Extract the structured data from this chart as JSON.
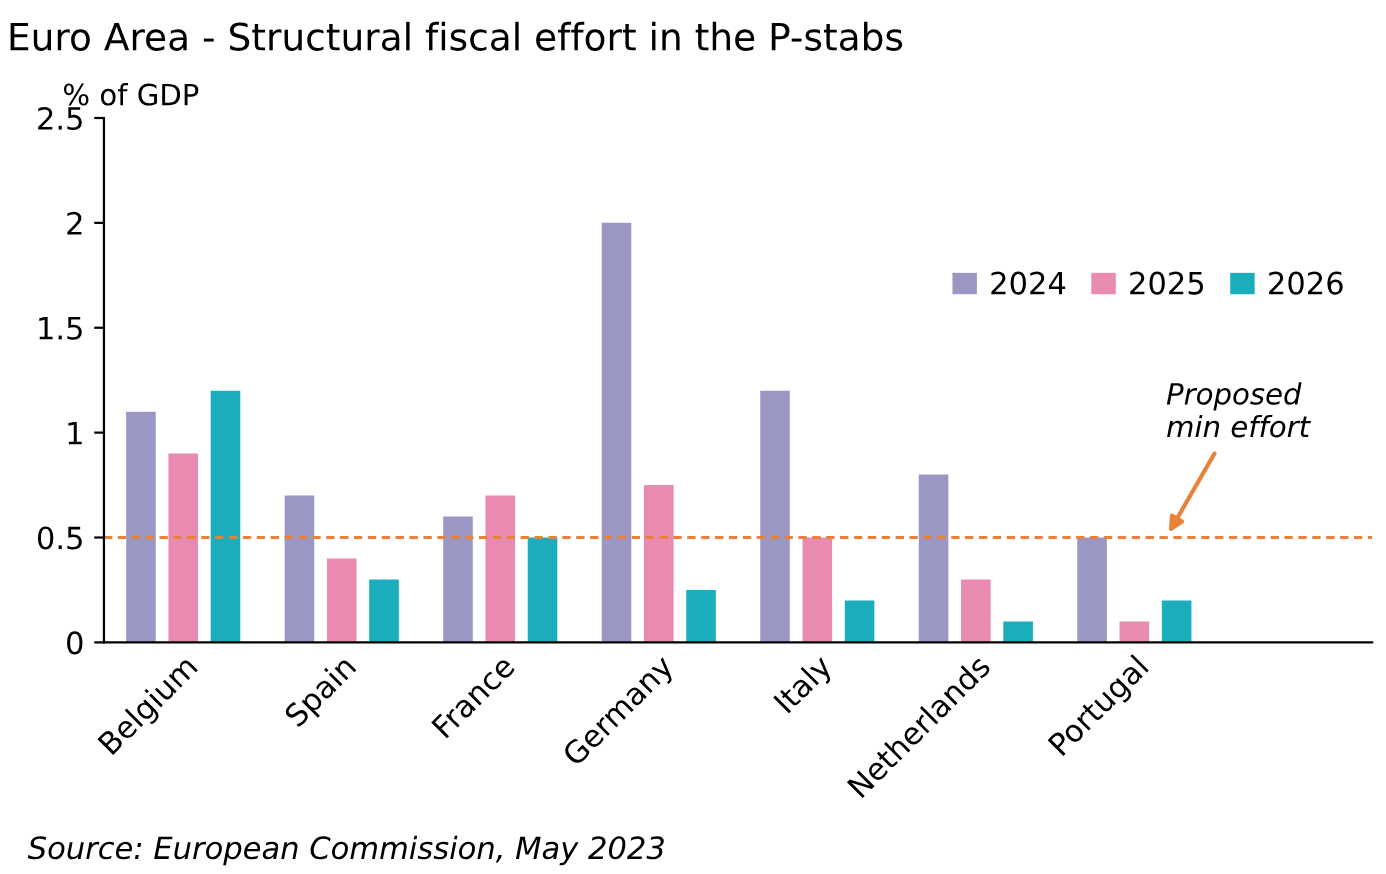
{
  "chart_data": {
    "type": "bar",
    "title": "Euro Area - Structural fiscal effort in the P-stabs",
    "ylabel": "% of GDP",
    "categories": [
      "Belgium",
      "Spain",
      "France",
      "Germany",
      "Italy",
      "Netherlands",
      "Portugal",
      null
    ],
    "series": [
      {
        "name": "2024",
        "color": "#9b97c4",
        "values": [
          1.1,
          0.7,
          0.6,
          2.0,
          1.2,
          0.8,
          0.5,
          null
        ]
      },
      {
        "name": "2025",
        "color": "#e98bb0",
        "values": [
          0.9,
          0.4,
          0.7,
          0.75,
          0.5,
          0.3,
          0.1,
          null
        ]
      },
      {
        "name": "2026",
        "color": "#1aaebc",
        "values": [
          1.2,
          0.3,
          0.5,
          0.25,
          0.2,
          0.1,
          0.2,
          null
        ]
      }
    ],
    "ylim": [
      0,
      2.5
    ],
    "yticks": [
      0,
      0.5,
      1,
      1.5,
      2,
      2.5
    ],
    "ref_lines": [
      {
        "axis": "y",
        "value": 0.5,
        "label": "Proposed\nmin effort",
        "color": "#e8823a",
        "line_style": "dashed"
      }
    ],
    "annotations": [
      "Source: European Commission, May 2023"
    ],
    "legend": "right",
    "grid": false
  }
}
